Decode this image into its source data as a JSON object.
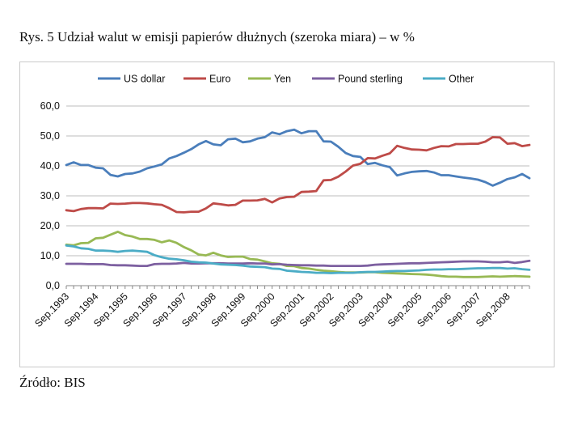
{
  "title": "Rys.  5 Udział walut w emisji papierów dłużnych (szeroka miara) – w %",
  "source": "Źródło: BIS",
  "chart_data": {
    "type": "line",
    "title": "",
    "xlabel": "",
    "ylabel": "",
    "ylim": [
      0,
      60
    ],
    "yticks": [
      "0,0",
      "10,0",
      "20,0",
      "30,0",
      "40,0",
      "50,0",
      "60,0"
    ],
    "grid": true,
    "legend_position": "top",
    "x_start": "Sep.1993",
    "x_tick_labels": [
      "Sep.1993",
      "Sep.1994",
      "Sep.1995",
      "Sep.1996",
      "Sep.1997",
      "Sep.1998",
      "Sep.1999",
      "Sep.2000",
      "Sep.2001",
      "Sep.2002",
      "Sep.2003",
      "Sep.2004",
      "Sep.2005",
      "Sep.2006",
      "Sep.2007",
      "Sep.2008"
    ],
    "series": [
      {
        "name": "US dollar",
        "color": "#4a7ebb",
        "values": [
          40.3,
          41.2,
          40.3,
          40.3,
          39.4,
          39.2,
          37.0,
          36.5,
          37.3,
          37.5,
          38.1,
          39.2,
          39.8,
          40.5,
          42.5,
          43.3,
          44.4,
          45.6,
          47.2,
          48.3,
          47.2,
          46.9,
          48.9,
          49.1,
          47.9,
          48.2,
          49.1,
          49.6,
          51.2,
          50.6,
          51.6,
          52.1,
          50.9,
          51.6,
          51.6,
          48.2,
          48.1,
          46.4,
          44.3,
          43.3,
          43.0,
          40.6,
          41.0,
          40.2,
          39.6,
          36.8,
          37.5,
          38.0,
          38.2,
          38.3,
          37.8,
          36.9,
          36.9,
          36.5,
          36.1,
          35.8,
          35.4,
          34.6,
          33.4,
          34.4,
          35.6,
          36.2,
          37.3,
          35.9
        ]
      },
      {
        "name": "Euro",
        "color": "#be4b48",
        "values": [
          25.2,
          24.9,
          25.6,
          25.9,
          25.9,
          25.8,
          27.4,
          27.3,
          27.4,
          27.6,
          27.6,
          27.5,
          27.2,
          27.0,
          25.9,
          24.6,
          24.5,
          24.7,
          24.7,
          25.8,
          27.5,
          27.2,
          26.8,
          27.0,
          28.4,
          28.4,
          28.5,
          29.0,
          27.8,
          29.1,
          29.6,
          29.7,
          31.3,
          31.4,
          31.6,
          35.2,
          35.3,
          36.4,
          38.1,
          40.1,
          40.7,
          42.6,
          42.5,
          43.4,
          44.2,
          46.7,
          46.0,
          45.5,
          45.4,
          45.2,
          46.0,
          46.6,
          46.5,
          47.3,
          47.3,
          47.4,
          47.4,
          48.1,
          49.6,
          49.5,
          47.4,
          47.6,
          46.6,
          47.0
        ]
      },
      {
        "name": "Yen",
        "color": "#98b954",
        "values": [
          13.7,
          13.5,
          14.2,
          14.3,
          15.8,
          16.0,
          17.0,
          18.0,
          16.9,
          16.4,
          15.6,
          15.6,
          15.3,
          14.5,
          15.1,
          14.3,
          12.9,
          11.8,
          10.4,
          10.1,
          11.0,
          10.1,
          9.6,
          9.7,
          9.7,
          8.9,
          8.7,
          8.1,
          7.5,
          7.3,
          6.6,
          6.5,
          5.9,
          5.7,
          5.3,
          5.0,
          4.8,
          4.6,
          4.4,
          4.4,
          4.4,
          4.5,
          4.5,
          4.3,
          4.2,
          4.1,
          4.0,
          3.9,
          3.8,
          3.7,
          3.5,
          3.2,
          3.0,
          3.0,
          2.9,
          2.9,
          2.9,
          3.0,
          3.1,
          3.0,
          3.1,
          3.2,
          3.1,
          3.0
        ]
      },
      {
        "name": "Pound sterling",
        "color": "#7d60a0",
        "values": [
          7.3,
          7.3,
          7.3,
          7.2,
          7.2,
          7.2,
          6.9,
          6.8,
          6.8,
          6.7,
          6.6,
          6.6,
          7.2,
          7.3,
          7.3,
          7.4,
          7.6,
          7.4,
          7.4,
          7.5,
          7.5,
          7.5,
          7.4,
          7.4,
          7.4,
          7.5,
          7.4,
          7.4,
          7.1,
          7.2,
          7.0,
          6.9,
          6.8,
          6.8,
          6.7,
          6.7,
          6.6,
          6.6,
          6.6,
          6.6,
          6.6,
          6.7,
          7.0,
          7.1,
          7.2,
          7.3,
          7.4,
          7.5,
          7.5,
          7.6,
          7.7,
          7.8,
          7.9,
          8.0,
          8.1,
          8.1,
          8.1,
          8.0,
          7.8,
          7.8,
          8.0,
          7.6,
          7.9,
          8.3
        ]
      },
      {
        "name": "Other",
        "color": "#4bacc6",
        "values": [
          13.4,
          13.1,
          12.5,
          12.3,
          11.7,
          11.7,
          11.6,
          11.3,
          11.6,
          11.7,
          11.5,
          11.3,
          10.2,
          9.5,
          9.0,
          8.8,
          8.5,
          8.0,
          7.8,
          7.7,
          7.4,
          7.1,
          7.0,
          6.9,
          6.7,
          6.4,
          6.3,
          6.2,
          5.7,
          5.6,
          5.0,
          4.8,
          4.6,
          4.5,
          4.3,
          4.3,
          4.2,
          4.3,
          4.3,
          4.3,
          4.5,
          4.6,
          4.6,
          4.7,
          4.8,
          4.9,
          4.9,
          5.0,
          5.1,
          5.3,
          5.4,
          5.4,
          5.5,
          5.5,
          5.6,
          5.7,
          5.8,
          5.8,
          5.9,
          5.9,
          5.7,
          5.8,
          5.5,
          5.3
        ]
      }
    ]
  }
}
